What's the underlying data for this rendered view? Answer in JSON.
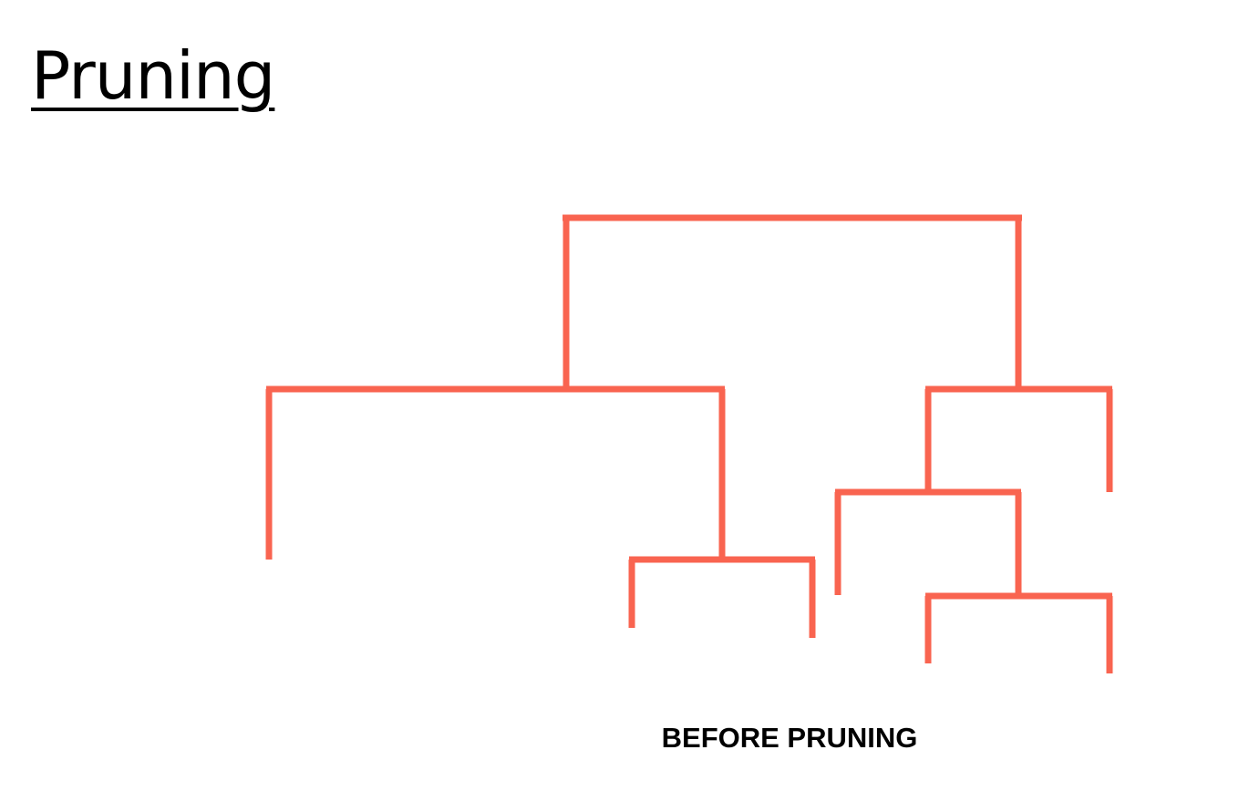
{
  "slide": {
    "title": "Pruning",
    "caption": "BEFORE PRUNING"
  },
  "diagram": {
    "type": "tree",
    "line_color": "#f96450",
    "state": "before pruning"
  }
}
